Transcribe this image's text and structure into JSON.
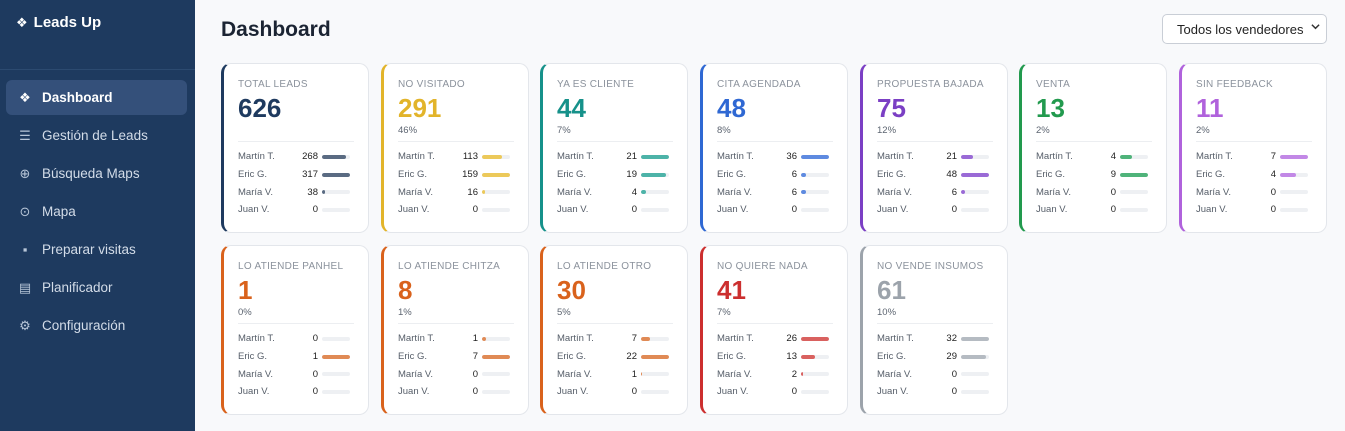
{
  "app": {
    "name": "Leads Up"
  },
  "sidebar": {
    "items": [
      {
        "label": "Dashboard",
        "icon": "diamond-icon",
        "glyph": "❖",
        "active": true
      },
      {
        "label": "Gestión de Leads",
        "icon": "list-icon",
        "glyph": "☰",
        "active": false
      },
      {
        "label": "Búsqueda Maps",
        "icon": "globe-icon",
        "glyph": "⊕",
        "active": false
      },
      {
        "label": "Mapa",
        "icon": "map-pin-icon",
        "glyph": "⊙",
        "active": false
      },
      {
        "label": "Preparar visitas",
        "icon": "chat-icon",
        "glyph": "▪",
        "active": false
      },
      {
        "label": "Planificador",
        "icon": "book-icon",
        "glyph": "▤",
        "active": false
      },
      {
        "label": "Configuración",
        "icon": "gear-icon",
        "glyph": "⚙",
        "active": false
      }
    ]
  },
  "header": {
    "title": "Dashboard",
    "seller_filter": "Todos los vendedores"
  },
  "colors": {
    "sidebar_bg": "#1e3a5f"
  },
  "cards": [
    {
      "label": "TOTAL LEADS",
      "value": "626",
      "pct": "",
      "color": "#1e3a5f",
      "bar": "#5a6b82",
      "rows": [
        {
          "name": "Martín T.",
          "count": 268
        },
        {
          "name": "Eric G.",
          "count": 317
        },
        {
          "name": "María V.",
          "count": 38
        },
        {
          "name": "Juan V.",
          "count": 0
        }
      ]
    },
    {
      "label": "NO VISITADO",
      "value": "291",
      "pct": "46%",
      "color": "#e2b42a",
      "bar": "#ecc95a",
      "rows": [
        {
          "name": "Martín T.",
          "count": 113
        },
        {
          "name": "Eric G.",
          "count": 159
        },
        {
          "name": "María V.",
          "count": 16
        },
        {
          "name": "Juan V.",
          "count": 0
        }
      ]
    },
    {
      "label": "YA ES CLIENTE",
      "value": "44",
      "pct": "7%",
      "color": "#16918a",
      "bar": "#4db3a8",
      "rows": [
        {
          "name": "Martín T.",
          "count": 21
        },
        {
          "name": "Eric G.",
          "count": 19
        },
        {
          "name": "María V.",
          "count": 4
        },
        {
          "name": "Juan V.",
          "count": 0
        }
      ]
    },
    {
      "label": "CITA AGENDADA",
      "value": "48",
      "pct": "8%",
      "color": "#2f68d3",
      "bar": "#5e8ae0",
      "rows": [
        {
          "name": "Martín T.",
          "count": 36
        },
        {
          "name": "Eric G.",
          "count": 6
        },
        {
          "name": "María V.",
          "count": 6
        },
        {
          "name": "Juan V.",
          "count": 0
        }
      ]
    },
    {
      "label": "PROPUESTA BAJADA",
      "value": "75",
      "pct": "12%",
      "color": "#7b3fc4",
      "bar": "#9a6ad6",
      "rows": [
        {
          "name": "Martín T.",
          "count": 21
        },
        {
          "name": "Eric G.",
          "count": 48
        },
        {
          "name": "María V.",
          "count": 6
        },
        {
          "name": "Juan V.",
          "count": 0
        }
      ]
    },
    {
      "label": "VENTA",
      "value": "13",
      "pct": "2%",
      "color": "#229a4e",
      "bar": "#4fb37a",
      "rows": [
        {
          "name": "Martín T.",
          "count": 4
        },
        {
          "name": "Eric G.",
          "count": 9
        },
        {
          "name": "María V.",
          "count": 0
        },
        {
          "name": "Juan V.",
          "count": 0
        }
      ]
    },
    {
      "label": "SIN FEEDBACK",
      "value": "11",
      "pct": "2%",
      "color": "#b062dc",
      "bar": "#c288e6",
      "rows": [
        {
          "name": "Martín T.",
          "count": 7
        },
        {
          "name": "Eric G.",
          "count": 4
        },
        {
          "name": "María V.",
          "count": 0
        },
        {
          "name": "Juan V.",
          "count": 0
        }
      ]
    },
    {
      "label": "LO ATIENDE PANHEL",
      "value": "1",
      "pct": "0%",
      "color": "#d9621c",
      "bar": "#e08a55",
      "rows": [
        {
          "name": "Martín T.",
          "count": 0
        },
        {
          "name": "Eric G.",
          "count": 1
        },
        {
          "name": "María V.",
          "count": 0
        },
        {
          "name": "Juan V.",
          "count": 0
        }
      ]
    },
    {
      "label": "LO ATIENDE CHITZA",
      "value": "8",
      "pct": "1%",
      "color": "#d9621c",
      "bar": "#e08a55",
      "rows": [
        {
          "name": "Martín T.",
          "count": 1
        },
        {
          "name": "Eric G.",
          "count": 7
        },
        {
          "name": "María V.",
          "count": 0
        },
        {
          "name": "Juan V.",
          "count": 0
        }
      ]
    },
    {
      "label": "LO ATIENDE OTRO",
      "value": "30",
      "pct": "5%",
      "color": "#d9621c",
      "bar": "#e08a55",
      "rows": [
        {
          "name": "Martín T.",
          "count": 7
        },
        {
          "name": "Eric G.",
          "count": 22
        },
        {
          "name": "María V.",
          "count": 1
        },
        {
          "name": "Juan V.",
          "count": 0
        }
      ]
    },
    {
      "label": "NO QUIERE NADA",
      "value": "41",
      "pct": "7%",
      "color": "#cc2f2f",
      "bar": "#d9615f",
      "rows": [
        {
          "name": "Martín T.",
          "count": 26
        },
        {
          "name": "Eric G.",
          "count": 13
        },
        {
          "name": "María V.",
          "count": 2
        },
        {
          "name": "Juan V.",
          "count": 0
        }
      ]
    },
    {
      "label": "NO VENDE INSUMOS",
      "value": "61",
      "pct": "10%",
      "color": "#9ca3ab",
      "bar": "#b5bbc2",
      "rows": [
        {
          "name": "Martín T.",
          "count": 32
        },
        {
          "name": "Eric G.",
          "count": 29
        },
        {
          "name": "María V.",
          "count": 0
        },
        {
          "name": "Juan V.",
          "count": 0
        }
      ]
    }
  ]
}
